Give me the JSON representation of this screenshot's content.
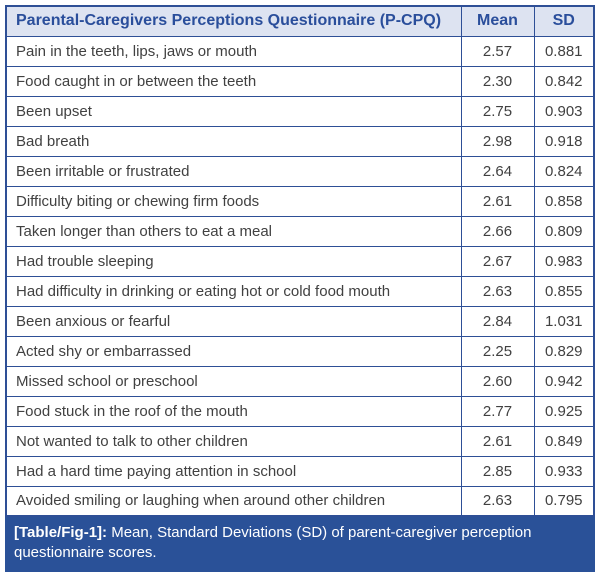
{
  "figure": {
    "header": {
      "title": "Parental-Caregivers Perceptions Questionnaire (P-CPQ)",
      "mean_label": "Mean",
      "sd_label": "SD"
    },
    "rows": [
      {
        "item": "Pain in the teeth, lips, jaws or mouth",
        "mean": "2.57",
        "sd": "0.881"
      },
      {
        "item": "Food caught in or between the teeth",
        "mean": "2.30",
        "sd": "0.842"
      },
      {
        "item": "Been upset",
        "mean": "2.75",
        "sd": "0.903"
      },
      {
        "item": "Bad breath",
        "mean": "2.98",
        "sd": "0.918"
      },
      {
        "item": "Been irritable or frustrated",
        "mean": "2.64",
        "sd": "0.824"
      },
      {
        "item": "Difficulty biting or chewing firm foods",
        "mean": "2.61",
        "sd": "0.858"
      },
      {
        "item": "Taken longer than others to eat a meal",
        "mean": "2.66",
        "sd": "0.809"
      },
      {
        "item": "Had trouble sleeping",
        "mean": "2.67",
        "sd": "0.983"
      },
      {
        "item": "Had difficulty in drinking or eating hot or cold food mouth",
        "mean": "2.63",
        "sd": "0.855"
      },
      {
        "item": "Been anxious or fearful",
        "mean": "2.84",
        "sd": "1.031"
      },
      {
        "item": "Acted shy or embarrassed",
        "mean": "2.25",
        "sd": "0.829"
      },
      {
        "item": "Missed school or preschool",
        "mean": "2.60",
        "sd": "0.942"
      },
      {
        "item": "Food stuck in the roof of the mouth",
        "mean": "2.77",
        "sd": "0.925"
      },
      {
        "item": "Not wanted to talk to other children",
        "mean": "2.61",
        "sd": "0.849"
      },
      {
        "item": "Had a hard time paying attention in school",
        "mean": "2.85",
        "sd": "0.933"
      },
      {
        "item": "Avoided smiling or laughing when around other children",
        "mean": "2.63",
        "sd": "0.795"
      }
    ],
    "caption": {
      "tag": "[Table/Fig-1]:",
      "text": "Mean, Standard Deviations (SD) of parent-caregiver perception questionnaire scores."
    }
  },
  "colors": {
    "border": "#2e4f96",
    "header_background": "#dde3f1",
    "header_text": "#2a4e9b",
    "body_text": "#414141",
    "caption_background": "#2a5198",
    "caption_text": "#ffffff"
  },
  "chart_data": {
    "type": "table",
    "title": "Parental-Caregivers Perceptions Questionnaire (P-CPQ)",
    "columns": [
      "Parental-Caregivers Perceptions Questionnaire (P-CPQ)",
      "Mean",
      "SD"
    ],
    "categories": [
      "Pain in the teeth, lips, jaws or mouth",
      "Food caught in or between the teeth",
      "Been upset",
      "Bad breath",
      "Been irritable or frustrated",
      "Difficulty biting or chewing firm foods",
      "Taken longer than others to eat a meal",
      "Had trouble sleeping",
      "Had difficulty in drinking or eating hot or cold food mouth",
      "Been anxious or fearful",
      "Acted shy or embarrassed",
      "Missed school or preschool",
      "Food stuck in the roof of the mouth",
      "Not wanted to talk to other children",
      "Had a hard time paying attention in school",
      "Avoided smiling or laughing when around other children"
    ],
    "series": [
      {
        "name": "Mean",
        "values": [
          2.57,
          2.3,
          2.75,
          2.98,
          2.64,
          2.61,
          2.66,
          2.67,
          2.63,
          2.84,
          2.25,
          2.6,
          2.77,
          2.61,
          2.85,
          2.63
        ]
      },
      {
        "name": "SD",
        "values": [
          0.881,
          0.842,
          0.903,
          0.918,
          0.824,
          0.858,
          0.809,
          0.983,
          0.855,
          1.031,
          0.829,
          0.942,
          0.925,
          0.849,
          0.933,
          0.795
        ]
      }
    ]
  }
}
